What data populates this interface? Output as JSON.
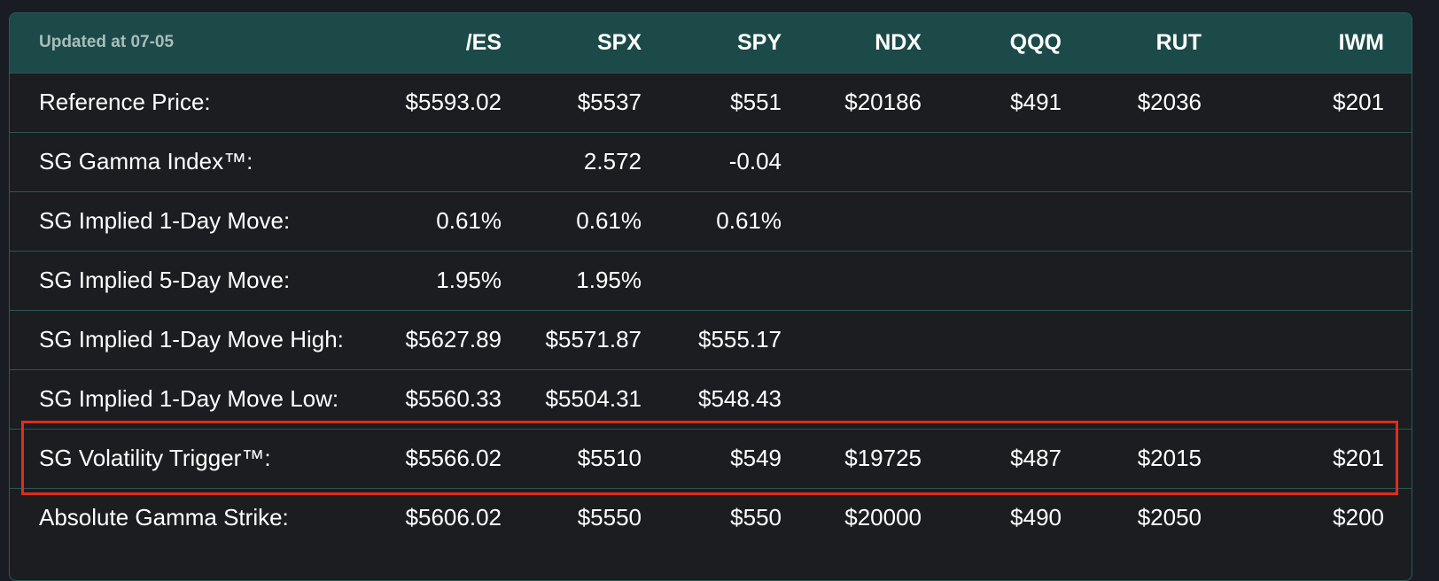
{
  "header": {
    "updated_label": "Updated at 07-05",
    "columns": [
      "/ES",
      "SPX",
      "SPY",
      "NDX",
      "QQQ",
      "RUT",
      "IWM"
    ]
  },
  "rows": [
    {
      "label": "Reference Price:",
      "values": [
        "$5593.02",
        "$5537",
        "$551",
        "$20186",
        "$491",
        "$2036",
        "$201"
      ]
    },
    {
      "label": "SG Gamma Index™:",
      "values": [
        "",
        "2.572",
        "-0.04",
        "",
        "",
        "",
        ""
      ]
    },
    {
      "label": "SG Implied 1-Day Move:",
      "values": [
        "0.61%",
        "0.61%",
        "0.61%",
        "",
        "",
        "",
        ""
      ]
    },
    {
      "label": "SG Implied 5-Day Move:",
      "values": [
        "1.95%",
        "1.95%",
        "",
        "",
        "",
        "",
        ""
      ]
    },
    {
      "label": "SG Implied 1-Day Move High:",
      "values": [
        "$5627.89",
        "$5571.87",
        "$555.17",
        "",
        "",
        "",
        ""
      ]
    },
    {
      "label": "SG Implied 1-Day Move Low:",
      "values": [
        "$5560.33",
        "$5504.31",
        "$548.43",
        "",
        "",
        "",
        ""
      ]
    },
    {
      "label": "SG Volatility Trigger™:",
      "values": [
        "$5566.02",
        "$5510",
        "$549",
        "$19725",
        "$487",
        "$2015",
        "$201"
      ],
      "highlighted": true
    },
    {
      "label": "Absolute Gamma Strike:",
      "values": [
        "$5606.02",
        "$5550",
        "$550",
        "$20000",
        "$490",
        "$2050",
        "$200"
      ]
    }
  ],
  "colors": {
    "background": "#191c22",
    "header_background": "#1c4a48",
    "border": "#2b5652",
    "highlight": "#e02d1b"
  }
}
